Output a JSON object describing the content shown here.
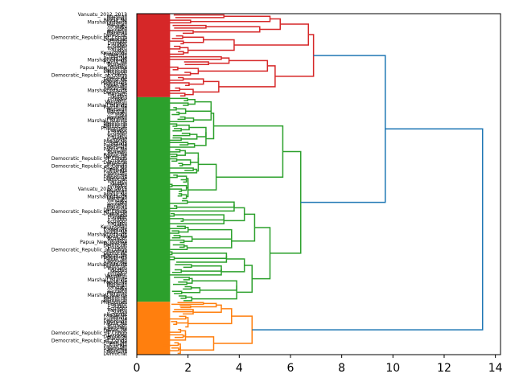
{
  "chart_data": {
    "type": "dendrogram",
    "orientation": "right",
    "title": "",
    "xlabel": "",
    "ylabel": "",
    "xlim": [
      0,
      14.2
    ],
    "xticks": [
      0,
      2,
      4,
      6,
      8,
      10,
      12,
      14
    ],
    "xtick_labels": [
      "0",
      "2",
      "4",
      "6",
      "8",
      "10",
      "12",
      "14"
    ],
    "colors": {
      "cluster_red": "#d62728",
      "cluster_green": "#2ca02c",
      "cluster_orange": "#ff7f0e",
      "above_threshold": "#1f77b4"
    },
    "root_height": 13.5,
    "clusters": [
      {
        "name": "red",
        "color": "#d62728",
        "merge_height": 6.9,
        "leaf_fraction": [
          0.0,
          0.245
        ],
        "subclusters": [
          {
            "height": 6.7,
            "children": [
              {
                "height": 5.6,
                "children": [
                  {
                    "height": 5.2,
                    "children": [
                      {
                        "height": 3.4
                      },
                      {
                        "height": 2.1
                      }
                    ]
                  },
                  {
                    "height": 4.8,
                    "children": [
                      {
                        "height": 2.7
                      },
                      {
                        "height": 2.2
                      }
                    ]
                  }
                ]
              },
              {
                "height": 3.8,
                "children": [
                  {
                    "height": 2.6
                  },
                  {
                    "height": 2.0
                  }
                ]
              }
            ]
          },
          {
            "height": 5.4,
            "children": [
              {
                "height": 5.1,
                "children": [
                  {
                    "height": 3.6,
                    "children": [
                      {
                        "height": 3.3
                      },
                      {
                        "height": 2.8
                      }
                    ]
                  },
                  {
                    "height": 2.4
                  }
                ]
              },
              {
                "height": 3.2,
                "children": [
                  {
                    "height": 2.6
                  },
                  {
                    "height": 2.2
                  }
                ]
              }
            ]
          }
        ]
      },
      {
        "name": "green",
        "color": "#2ca02c",
        "merge_height": 6.4,
        "leaf_fraction": [
          0.245,
          0.845
        ],
        "subclusters": [
          {
            "height": 5.7,
            "children": [
              {
                "height": 3.0,
                "children": [
                  {
                    "height": 2.9
                  },
                  {
                    "height": 2.7
                  }
                ]
              },
              {
                "height": 3.1,
                "children": [
                  {
                    "height": 2.4
                  },
                  {
                    "height": 2.0
                  }
                ]
              }
            ]
          },
          {
            "height": 5.2,
            "children": [
              {
                "height": 4.6,
                "children": [
                  {
                    "height": 4.2,
                    "children": [
                      {
                        "height": 3.8
                      },
                      {
                        "height": 3.4
                      }
                    ]
                  },
                  {
                    "height": 3.7
                  }
                ]
              },
              {
                "height": 4.5,
                "children": [
                  {
                    "height": 4.2,
                    "children": [
                      {
                        "height": 3.5
                      },
                      {
                        "height": 3.3
                      }
                    ]
                  },
                  {
                    "height": 3.9
                  }
                ]
              }
            ]
          }
        ]
      },
      {
        "name": "orange",
        "color": "#ff7f0e",
        "merge_height": 4.5,
        "leaf_fraction": [
          0.845,
          1.0
        ],
        "subclusters": [
          {
            "height": 3.7,
            "children": [
              {
                "height": 3.3,
                "children": [
                  {
                    "height": 3.1,
                    "children": [
                      {
                        "height": 2.6
                      },
                      {
                        "height": 2.1
                      }
                    ]
                  },
                  {
                    "height": 2.2
                  }
                ]
              },
              {
                "height": 2.0
              }
            ]
          },
          {
            "height": 3.0,
            "children": [
              {
                "height": 1.9
              },
              {
                "height": 1.7
              }
            ]
          }
        ]
      }
    ],
    "upper_links": [
      {
        "left": "red",
        "right": "green",
        "height": 9.7
      },
      {
        "left": "red+green",
        "right": "orange",
        "height": 13.5
      }
    ],
    "visible_leaf_labels": [
      "Vanuatu_2012_2013",
      "Marshall_Islands",
      "Marshall_Islands",
      "Papua_New_Guinea",
      "Marshall_Islands",
      "Marshall_Islands",
      "Vanuatu",
      "India",
      "Vanuatu",
      "Marshall_Islands",
      "Marshall_Islands",
      "Democratic_Republic_of_Congo",
      "Democratic_Republic_of_Congo",
      "Democratic_Republic_of_Congo",
      "Philippines",
      "Ecuador",
      "Sudan",
      "Ecuador",
      "Vanuatu",
      "Sudan",
      "Kyrgyzstan",
      "Papua_New_Guinea",
      "Bolivia",
      "Papua_New_Guinea",
      "Marshall_Islands",
      "Papua_New_Guinea",
      "Ecuador",
      "Vanuatu",
      "Papua_New_Guinea",
      "Democratic_Republic_of_Congo",
      "Democratic_Republic_of_Congo",
      "Ecuador",
      "Democratic_Republic_of_Congo",
      "Marshall_Islands",
      "Democratic_Republic_of_Congo",
      "Papua_New_Guinea",
      "Philippines",
      "Papua_New_Guinea",
      "Vanuatu",
      "Papua_New_Guinea",
      "Marshall_Islands",
      "Democratic_Republic_of_Congo",
      "Vanuatu",
      "Sudan",
      "Mexico",
      "Ecuador"
    ]
  }
}
